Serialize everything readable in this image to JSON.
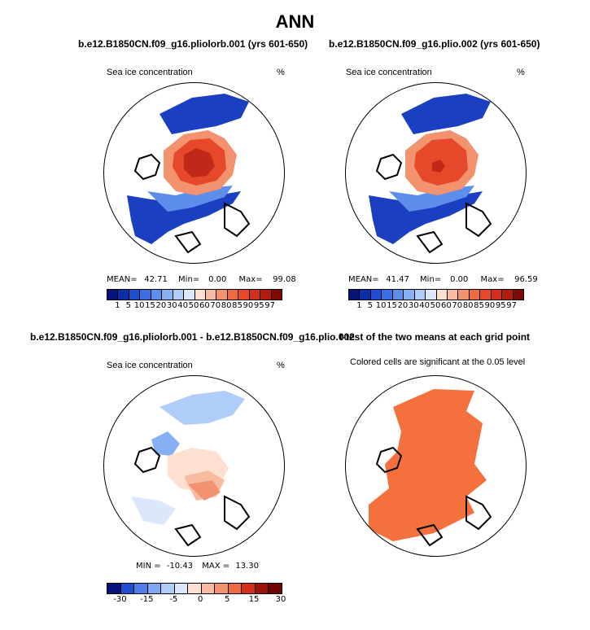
{
  "page": {
    "title": "ANN"
  },
  "chart_data": [
    {
      "type": "polar-map",
      "panel": "top-left",
      "title": "b.e12.B1850CN.f09_g16.pliolorb.001 (yrs 601-650)",
      "variable": "Sea ice concentration",
      "units": "%",
      "stats": {
        "mean_label": "MEAN=",
        "mean": "42.71",
        "min_label": "Min=",
        "min": "0.00",
        "max_label": "Max=",
        "max": "99.08"
      },
      "colorbar": {
        "ticks": [
          "1",
          "5",
          "10",
          "15",
          "20",
          "30",
          "40",
          "50",
          "60",
          "70",
          "80",
          "85",
          "90",
          "95",
          "97"
        ],
        "colors": [
          "#08147a",
          "#0a2fa6",
          "#1f4fd0",
          "#3a6ee2",
          "#5e8eec",
          "#87aff3",
          "#b0ccf8",
          "#dbe8fb",
          "#fde0d0",
          "#f8bba0",
          "#f3926f",
          "#ee6a43",
          "#e6482a",
          "#d22f1c",
          "#b01c10",
          "#7f0a05"
        ]
      }
    },
    {
      "type": "polar-map",
      "panel": "top-right",
      "title": "b.e12.B1850CN.f09_g16.plio.002 (yrs 601-650)",
      "variable": "Sea ice concentration",
      "units": "%",
      "stats": {
        "mean_label": "MEAN=",
        "mean": "41.47",
        "min_label": "Min=",
        "min": "0.00",
        "max_label": "Max=",
        "max": "96.59"
      },
      "colorbar": {
        "ticks": [
          "1",
          "5",
          "10",
          "15",
          "20",
          "30",
          "40",
          "50",
          "60",
          "70",
          "80",
          "85",
          "90",
          "95",
          "97"
        ],
        "colors": [
          "#08147a",
          "#0a2fa6",
          "#1f4fd0",
          "#3a6ee2",
          "#5e8eec",
          "#87aff3",
          "#b0ccf8",
          "#dbe8fb",
          "#fde0d0",
          "#f8bba0",
          "#f3926f",
          "#ee6a43",
          "#e6482a",
          "#d22f1c",
          "#b01c10",
          "#7f0a05"
        ]
      }
    },
    {
      "type": "polar-map",
      "panel": "bottom-left",
      "title": "b.e12.B1850CN.f09_g16.pliolorb.001 - b.e12.B1850CN.f09_g16.plio.002",
      "variable": "Sea ice concentration",
      "units": "%",
      "stats": {
        "min_label": "MIN =",
        "min": "-10.43",
        "max_label": "MAX =",
        "max": "13.30"
      },
      "colorbar": {
        "ticks": [
          "-30",
          "-15",
          "-5",
          "0",
          "5",
          "15",
          "30"
        ],
        "colors": [
          "#08147a",
          "#1f4fd0",
          "#4f7fe6",
          "#7fa6f0",
          "#b0ccf8",
          "#dbe8fb",
          "#fde0d0",
          "#f8bba0",
          "#f3926f",
          "#ee6a43",
          "#d22f1c",
          "#9a1208",
          "#6e0500"
        ]
      }
    },
    {
      "type": "polar-map",
      "panel": "bottom-right",
      "title": "t-test of the two means at each grid point",
      "subtitle": "Colored cells are significant at the 0.05 level",
      "significance_color": "#f4703c"
    }
  ]
}
